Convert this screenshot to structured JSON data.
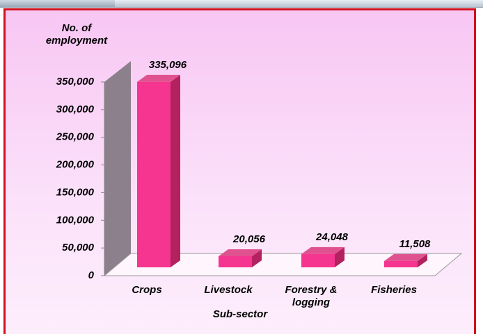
{
  "chart_data": {
    "type": "bar3d",
    "y_label": "No. of employment",
    "x_label": "Sub-sector",
    "categories": [
      "Crops",
      "Livestock",
      "Forestry & logging",
      "Fisheries"
    ],
    "values": [
      335096,
      20056,
      24048,
      11508
    ],
    "value_labels": [
      "335,096",
      "20,056",
      "24,048",
      "11,508"
    ],
    "color": "#f5358f",
    "ylim": [
      0,
      350000
    ],
    "yticks": [
      0,
      {
        "value": 50000,
        "label": "50,000"
      },
      {
        "value": 100000,
        "label": "100,000"
      },
      {
        "value": 150000,
        "label": "150,000"
      },
      {
        "value": 200000,
        "label": "200,000"
      },
      {
        "value": 250000,
        "label": "250,000"
      },
      {
        "value": 300000,
        "label": "300,000"
      },
      {
        "value": 350000,
        "label": "350,000"
      }
    ],
    "grid": false
  }
}
